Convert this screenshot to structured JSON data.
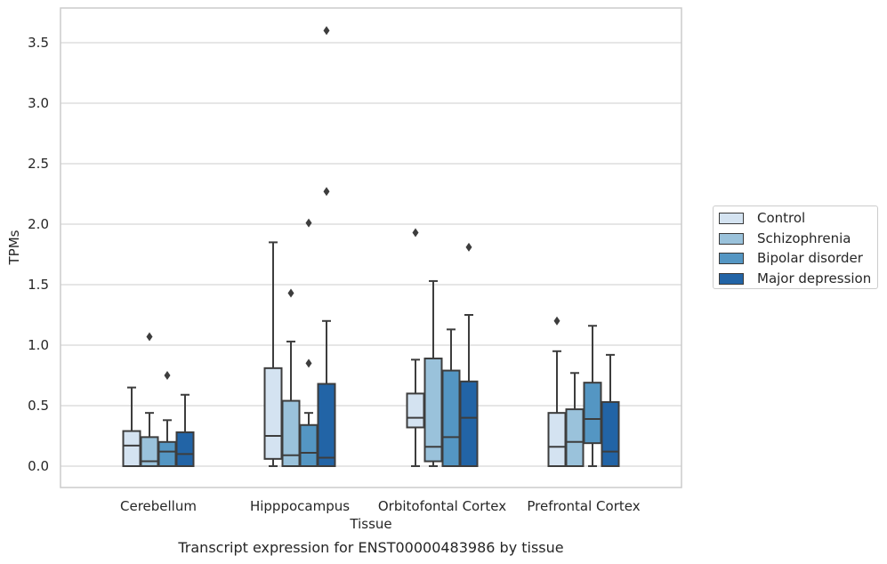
{
  "chart_data": {
    "type": "box",
    "title": "",
    "xlabel": "Tissue",
    "ylabel": "TPMs",
    "caption": "Transcript expression for ENST00000483986 by tissue",
    "ylim": [
      -0.17,
      3.77
    ],
    "yticks": [
      "0.0",
      "0.5",
      "1.0",
      "1.5",
      "2.0",
      "2.5",
      "3.0",
      "3.5"
    ],
    "grid": true,
    "legend_position": "right",
    "categories": [
      "Cerebellum",
      "Hipppocampus",
      "Orbitofontal Cortex",
      "Prefrontal Cortex"
    ],
    "series": [
      {
        "name": "Control",
        "color": "#d4e3f1",
        "boxes": [
          {
            "min": 0.0,
            "q1": 0.0,
            "median": 0.17,
            "q3": 0.29,
            "max": 0.65,
            "outliers": []
          },
          {
            "min": 0.0,
            "q1": 0.06,
            "median": 0.25,
            "q3": 0.81,
            "max": 1.85,
            "outliers": []
          },
          {
            "min": 0.0,
            "q1": 0.32,
            "median": 0.4,
            "q3": 0.6,
            "max": 0.88,
            "outliers": [
              1.93
            ]
          },
          {
            "min": 0.0,
            "q1": 0.0,
            "median": 0.16,
            "q3": 0.44,
            "max": 0.95,
            "outliers": [
              1.2
            ]
          }
        ]
      },
      {
        "name": "Schizophrenia",
        "color": "#9ac2db",
        "boxes": [
          {
            "min": 0.0,
            "q1": 0.0,
            "median": 0.04,
            "q3": 0.24,
            "max": 0.44,
            "outliers": [
              1.07
            ]
          },
          {
            "min": 0.0,
            "q1": 0.0,
            "median": 0.09,
            "q3": 0.54,
            "max": 1.03,
            "outliers": [
              1.43
            ]
          },
          {
            "min": 0.0,
            "q1": 0.04,
            "median": 0.16,
            "q3": 0.89,
            "max": 1.53,
            "outliers": []
          },
          {
            "min": 0.0,
            "q1": 0.0,
            "median": 0.2,
            "q3": 0.47,
            "max": 0.77,
            "outliers": []
          }
        ]
      },
      {
        "name": "Bipolar disorder",
        "color": "#5496c3",
        "boxes": [
          {
            "min": 0.0,
            "q1": 0.0,
            "median": 0.12,
            "q3": 0.2,
            "max": 0.38,
            "outliers": [
              0.75
            ]
          },
          {
            "min": 0.0,
            "q1": 0.0,
            "median": 0.11,
            "q3": 0.34,
            "max": 0.44,
            "outliers": [
              0.85,
              2.01
            ]
          },
          {
            "min": 0.0,
            "q1": 0.0,
            "median": 0.24,
            "q3": 0.79,
            "max": 1.13,
            "outliers": []
          },
          {
            "min": 0.0,
            "q1": 0.19,
            "median": 0.39,
            "q3": 0.69,
            "max": 1.16,
            "outliers": []
          }
        ]
      },
      {
        "name": "Major depression",
        "color": "#2264a6",
        "boxes": [
          {
            "min": 0.0,
            "q1": 0.0,
            "median": 0.1,
            "q3": 0.28,
            "max": 0.59,
            "outliers": []
          },
          {
            "min": 0.0,
            "q1": 0.0,
            "median": 0.07,
            "q3": 0.68,
            "max": 1.2,
            "outliers": [
              2.27,
              3.6
            ]
          },
          {
            "min": 0.0,
            "q1": 0.0,
            "median": 0.4,
            "q3": 0.7,
            "max": 1.25,
            "outliers": [
              1.81
            ]
          },
          {
            "min": 0.0,
            "q1": 0.0,
            "median": 0.12,
            "q3": 0.53,
            "max": 0.92,
            "outliers": []
          }
        ]
      }
    ]
  }
}
